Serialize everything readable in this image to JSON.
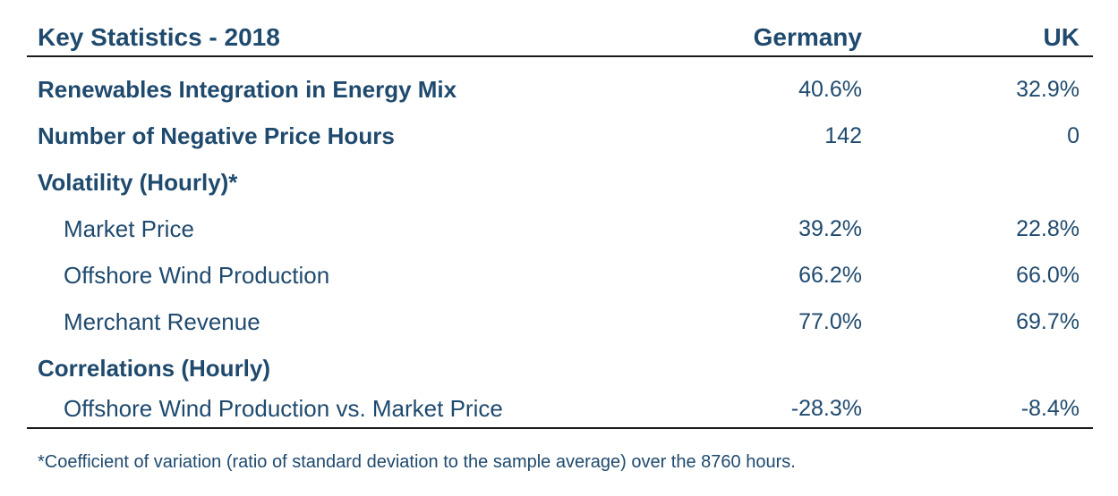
{
  "chart_data": {
    "type": "table",
    "title": "Key Statistics - 2018",
    "columns": [
      "Germany",
      "UK"
    ],
    "rows": [
      {
        "label": "Renewables Integration in Energy Mix",
        "level": 0,
        "bold": true,
        "values": [
          "40.6%",
          "32.9%"
        ]
      },
      {
        "label": "Number of Negative Price Hours",
        "level": 0,
        "bold": true,
        "values": [
          "142",
          "0"
        ]
      },
      {
        "label": "Volatility (Hourly)*",
        "level": 0,
        "bold": true,
        "values": [
          "",
          ""
        ]
      },
      {
        "label": "Market Price",
        "level": 1,
        "bold": false,
        "values": [
          "39.2%",
          "22.8%"
        ]
      },
      {
        "label": "Offshore Wind Production",
        "level": 1,
        "bold": false,
        "values": [
          "66.2%",
          "66.0%"
        ]
      },
      {
        "label": "Merchant Revenue",
        "level": 1,
        "bold": false,
        "values": [
          "77.0%",
          "69.7%"
        ]
      },
      {
        "label": "Correlations (Hourly)",
        "level": 0,
        "bold": true,
        "values": [
          "",
          ""
        ]
      },
      {
        "label": "Offshore Wind Production vs. Market Price",
        "level": 1,
        "bold": false,
        "values": [
          "-28.3%",
          "-8.4%"
        ]
      }
    ],
    "footnote": "*Coefficient of variation (ratio of standard deviation to the sample average) over the 8760 hours."
  },
  "colors": {
    "text": "#1f4a6e",
    "rule": "#1a1a1a"
  }
}
